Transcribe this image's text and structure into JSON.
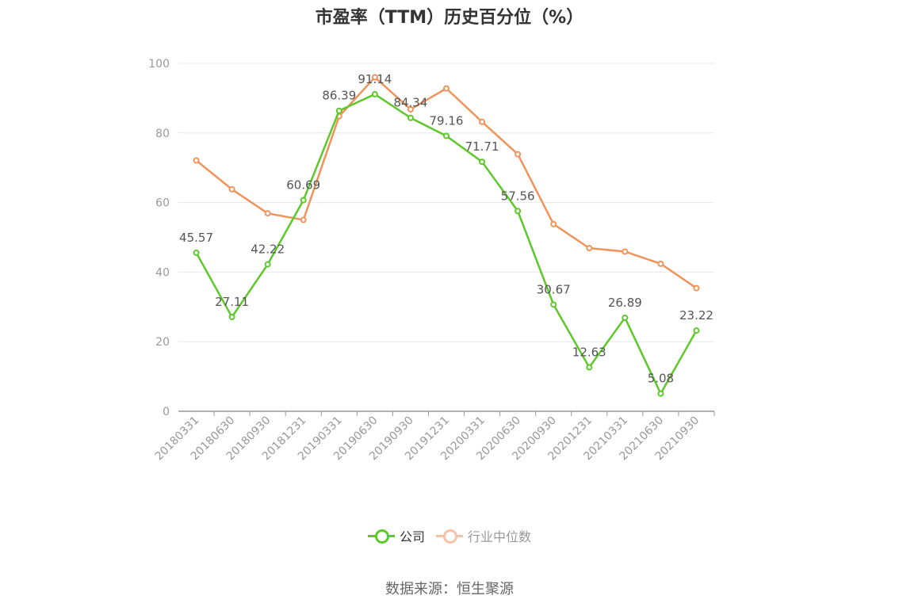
{
  "title": "市盈率（TTM）历史百分位（%）",
  "source": "数据来源：恒生聚源",
  "legend": [
    {
      "label": "公司",
      "color": "#5ec82b",
      "text_color": "#333333"
    },
    {
      "label": "行业中位数",
      "color": "#f4c3a8",
      "text_color": "#999999"
    }
  ],
  "chart_data": {
    "type": "line",
    "title": "市盈率（TTM）历史百分位（%）",
    "xlabel": "",
    "ylabel": "",
    "ylim": [
      0,
      100
    ],
    "yticks": [
      0,
      20,
      40,
      60,
      80,
      100
    ],
    "grid": true,
    "legend_position": "bottom",
    "categories": [
      "20180331",
      "20180630",
      "20180930",
      "20181231",
      "20190331",
      "20190630",
      "20190930",
      "20191231",
      "20200331",
      "20200630",
      "20200930",
      "20201231",
      "20210331",
      "20210630",
      "20210930"
    ],
    "series": [
      {
        "name": "公司",
        "color": "#5ec82b",
        "values": [
          45.57,
          27.11,
          42.22,
          60.69,
          86.39,
          91.14,
          84.34,
          79.16,
          71.71,
          57.56,
          30.67,
          12.63,
          26.89,
          5.08,
          23.22
        ],
        "show_labels": true
      },
      {
        "name": "行业中位数",
        "color": "#f0935a",
        "values": [
          72.1,
          63.8,
          56.9,
          55.0,
          84.8,
          96.0,
          86.8,
          92.8,
          83.2,
          73.9,
          53.8,
          46.9,
          45.9,
          42.4,
          35.4
        ],
        "show_labels": false
      }
    ]
  }
}
